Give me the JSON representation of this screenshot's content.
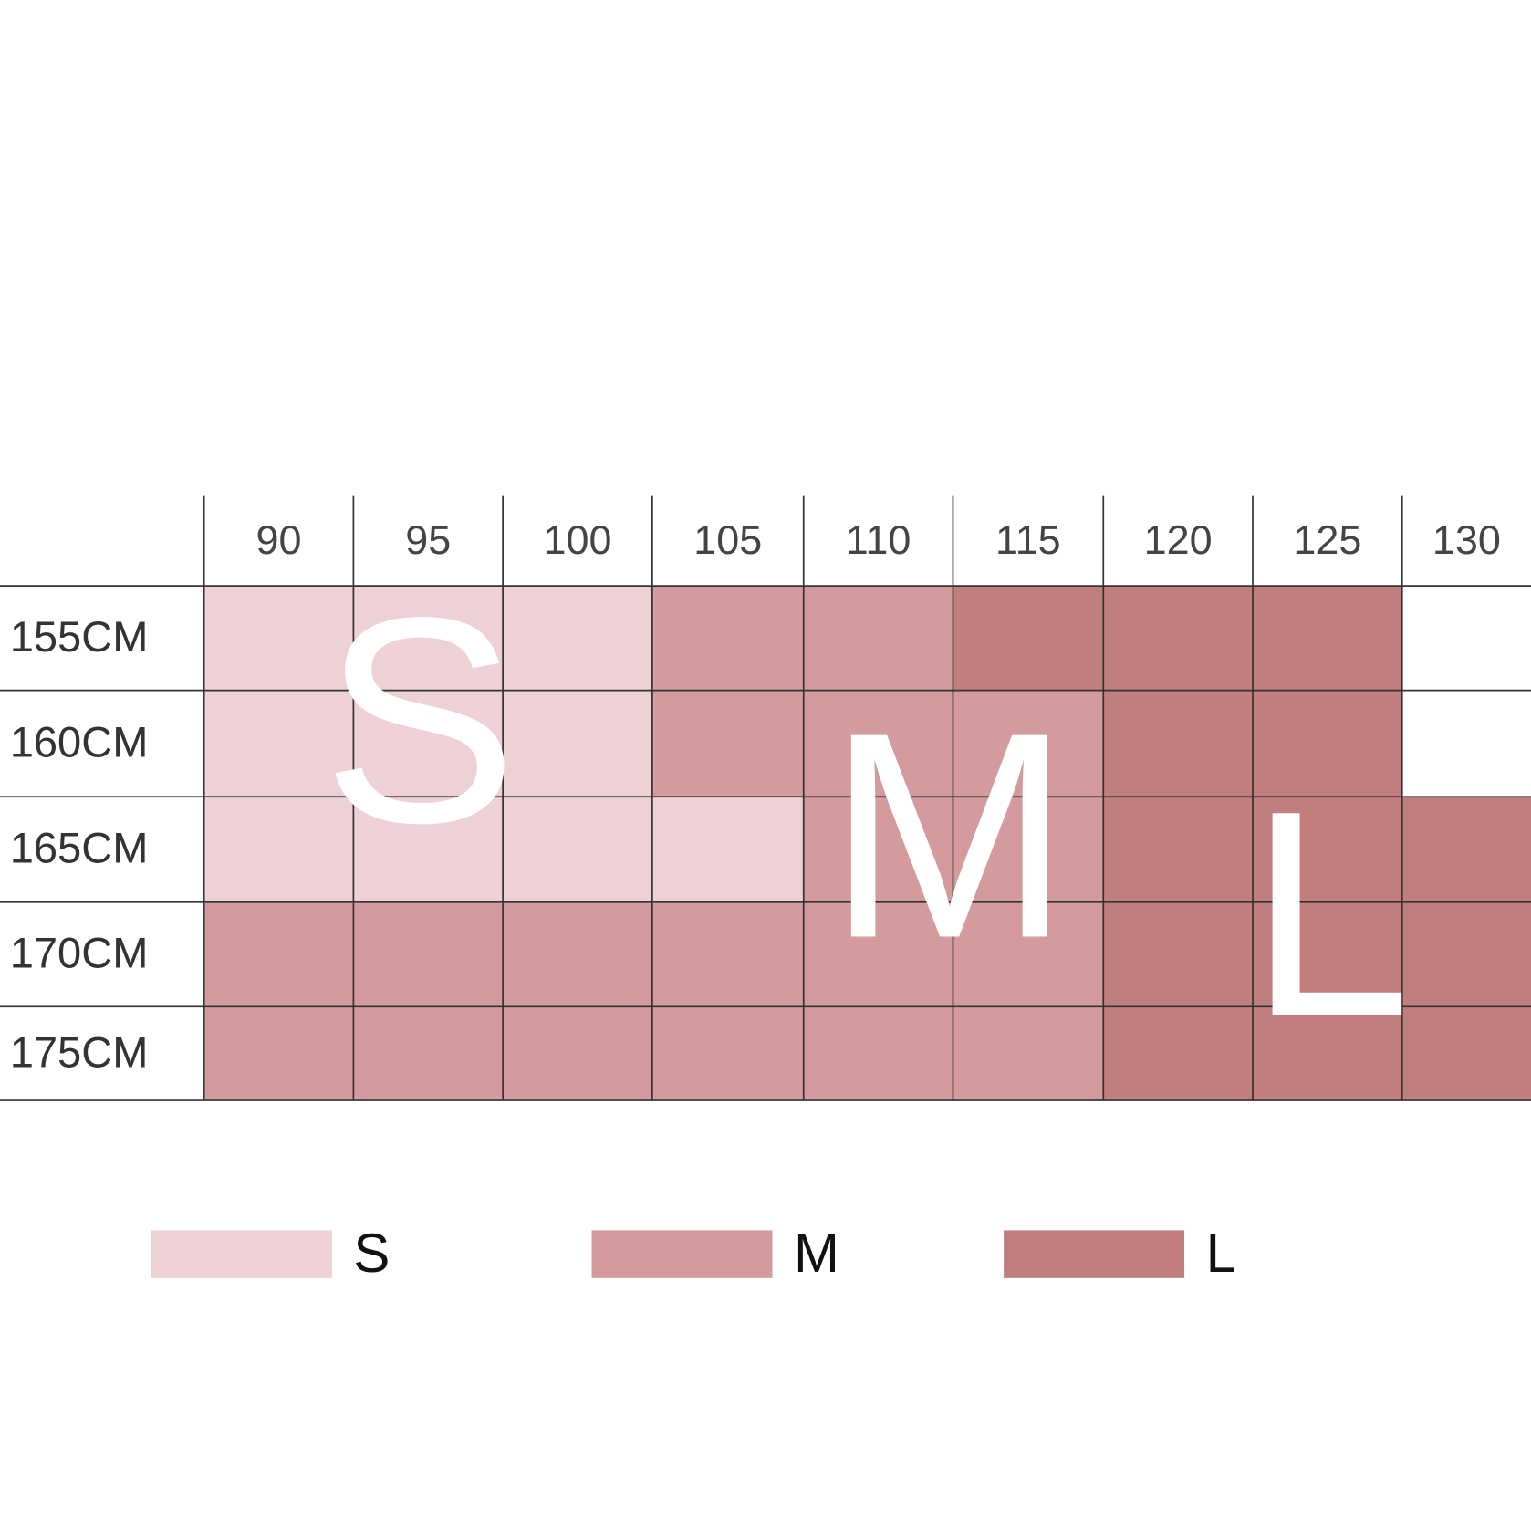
{
  "table": {
    "columns": [
      "90",
      "95",
      "100",
      "105",
      "110",
      "115",
      "120",
      "125",
      "130"
    ],
    "rows": [
      {
        "label": "155CM",
        "cells": [
          "#edd1d4",
          "#edd1d4",
          "#edd1d4",
          "#d39b9d",
          "#d39b9d",
          "#c07e7f",
          "#c07e7f",
          "#c07e7f",
          "#ffffff"
        ]
      },
      {
        "label": "160CM",
        "cells": [
          "#edd1d4",
          "#edd1d4",
          "#edd1d4",
          "#d39b9d",
          "#d39b9d",
          "#d39b9d",
          "#c07e7f",
          "#c07e7f",
          "#ffffff"
        ]
      },
      {
        "label": "165CM",
        "cells": [
          "#edd1d4",
          "#edd1d4",
          "#edd1d4",
          "#edd1d4",
          "#d39b9d",
          "#d39b9d",
          "#c07e7f",
          "#c07e7f",
          "#c07e7f"
        ]
      },
      {
        "label": "170CM",
        "cells": [
          "#d39b9d",
          "#d39b9d",
          "#d39b9d",
          "#d39b9d",
          "#d39b9d",
          "#d39b9d",
          "#c07e7f",
          "#c07e7f",
          "#c07e7f"
        ]
      },
      {
        "label": "175CM",
        "cells": [
          "#d39b9d",
          "#d39b9d",
          "#d39b9d",
          "#d39b9d",
          "#d39b9d",
          "#d39b9d",
          "#c07e7f",
          "#c07e7f",
          "#c07e7f"
        ]
      }
    ]
  },
  "overlay": [
    "S",
    "M",
    "L"
  ],
  "legend": [
    {
      "label": "S",
      "color": "#edd1d4"
    },
    {
      "label": "M",
      "color": "#d39b9d"
    },
    {
      "label": "L",
      "color": "#c07e7f"
    }
  ]
}
